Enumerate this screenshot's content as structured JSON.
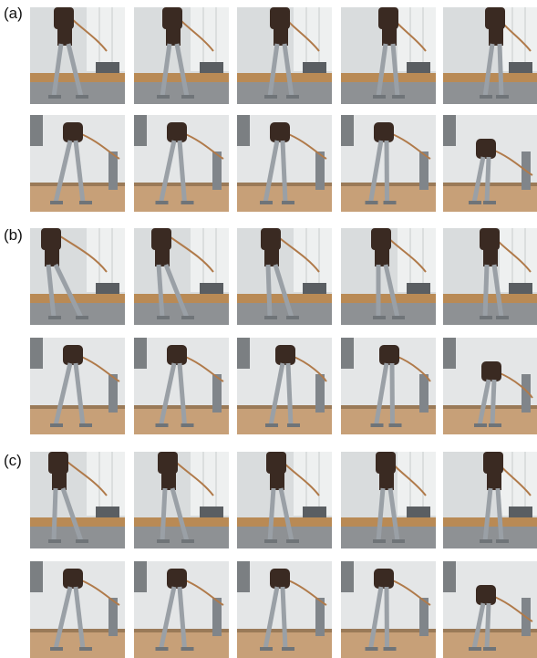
{
  "figure": {
    "panels": [
      {
        "label": "(a)",
        "rows": [
          {
            "view": "front",
            "frames": 5
          },
          {
            "view": "side",
            "frames": 5
          }
        ]
      },
      {
        "label": "(b)",
        "rows": [
          {
            "view": "front",
            "frames": 5
          },
          {
            "view": "side",
            "frames": 5
          }
        ]
      },
      {
        "label": "(c)",
        "rows": [
          {
            "view": "front",
            "frames": 5
          },
          {
            "view": "side",
            "frames": 5
          }
        ]
      }
    ]
  },
  "colors": {
    "wall": "#d9dcdd",
    "window": "#eef0f0",
    "table": "#b98a55",
    "floor": "#c7a078",
    "robot_dark": "#3a2a22",
    "robot_metal": "#9aa0a6",
    "cable": "#b07a4a"
  }
}
